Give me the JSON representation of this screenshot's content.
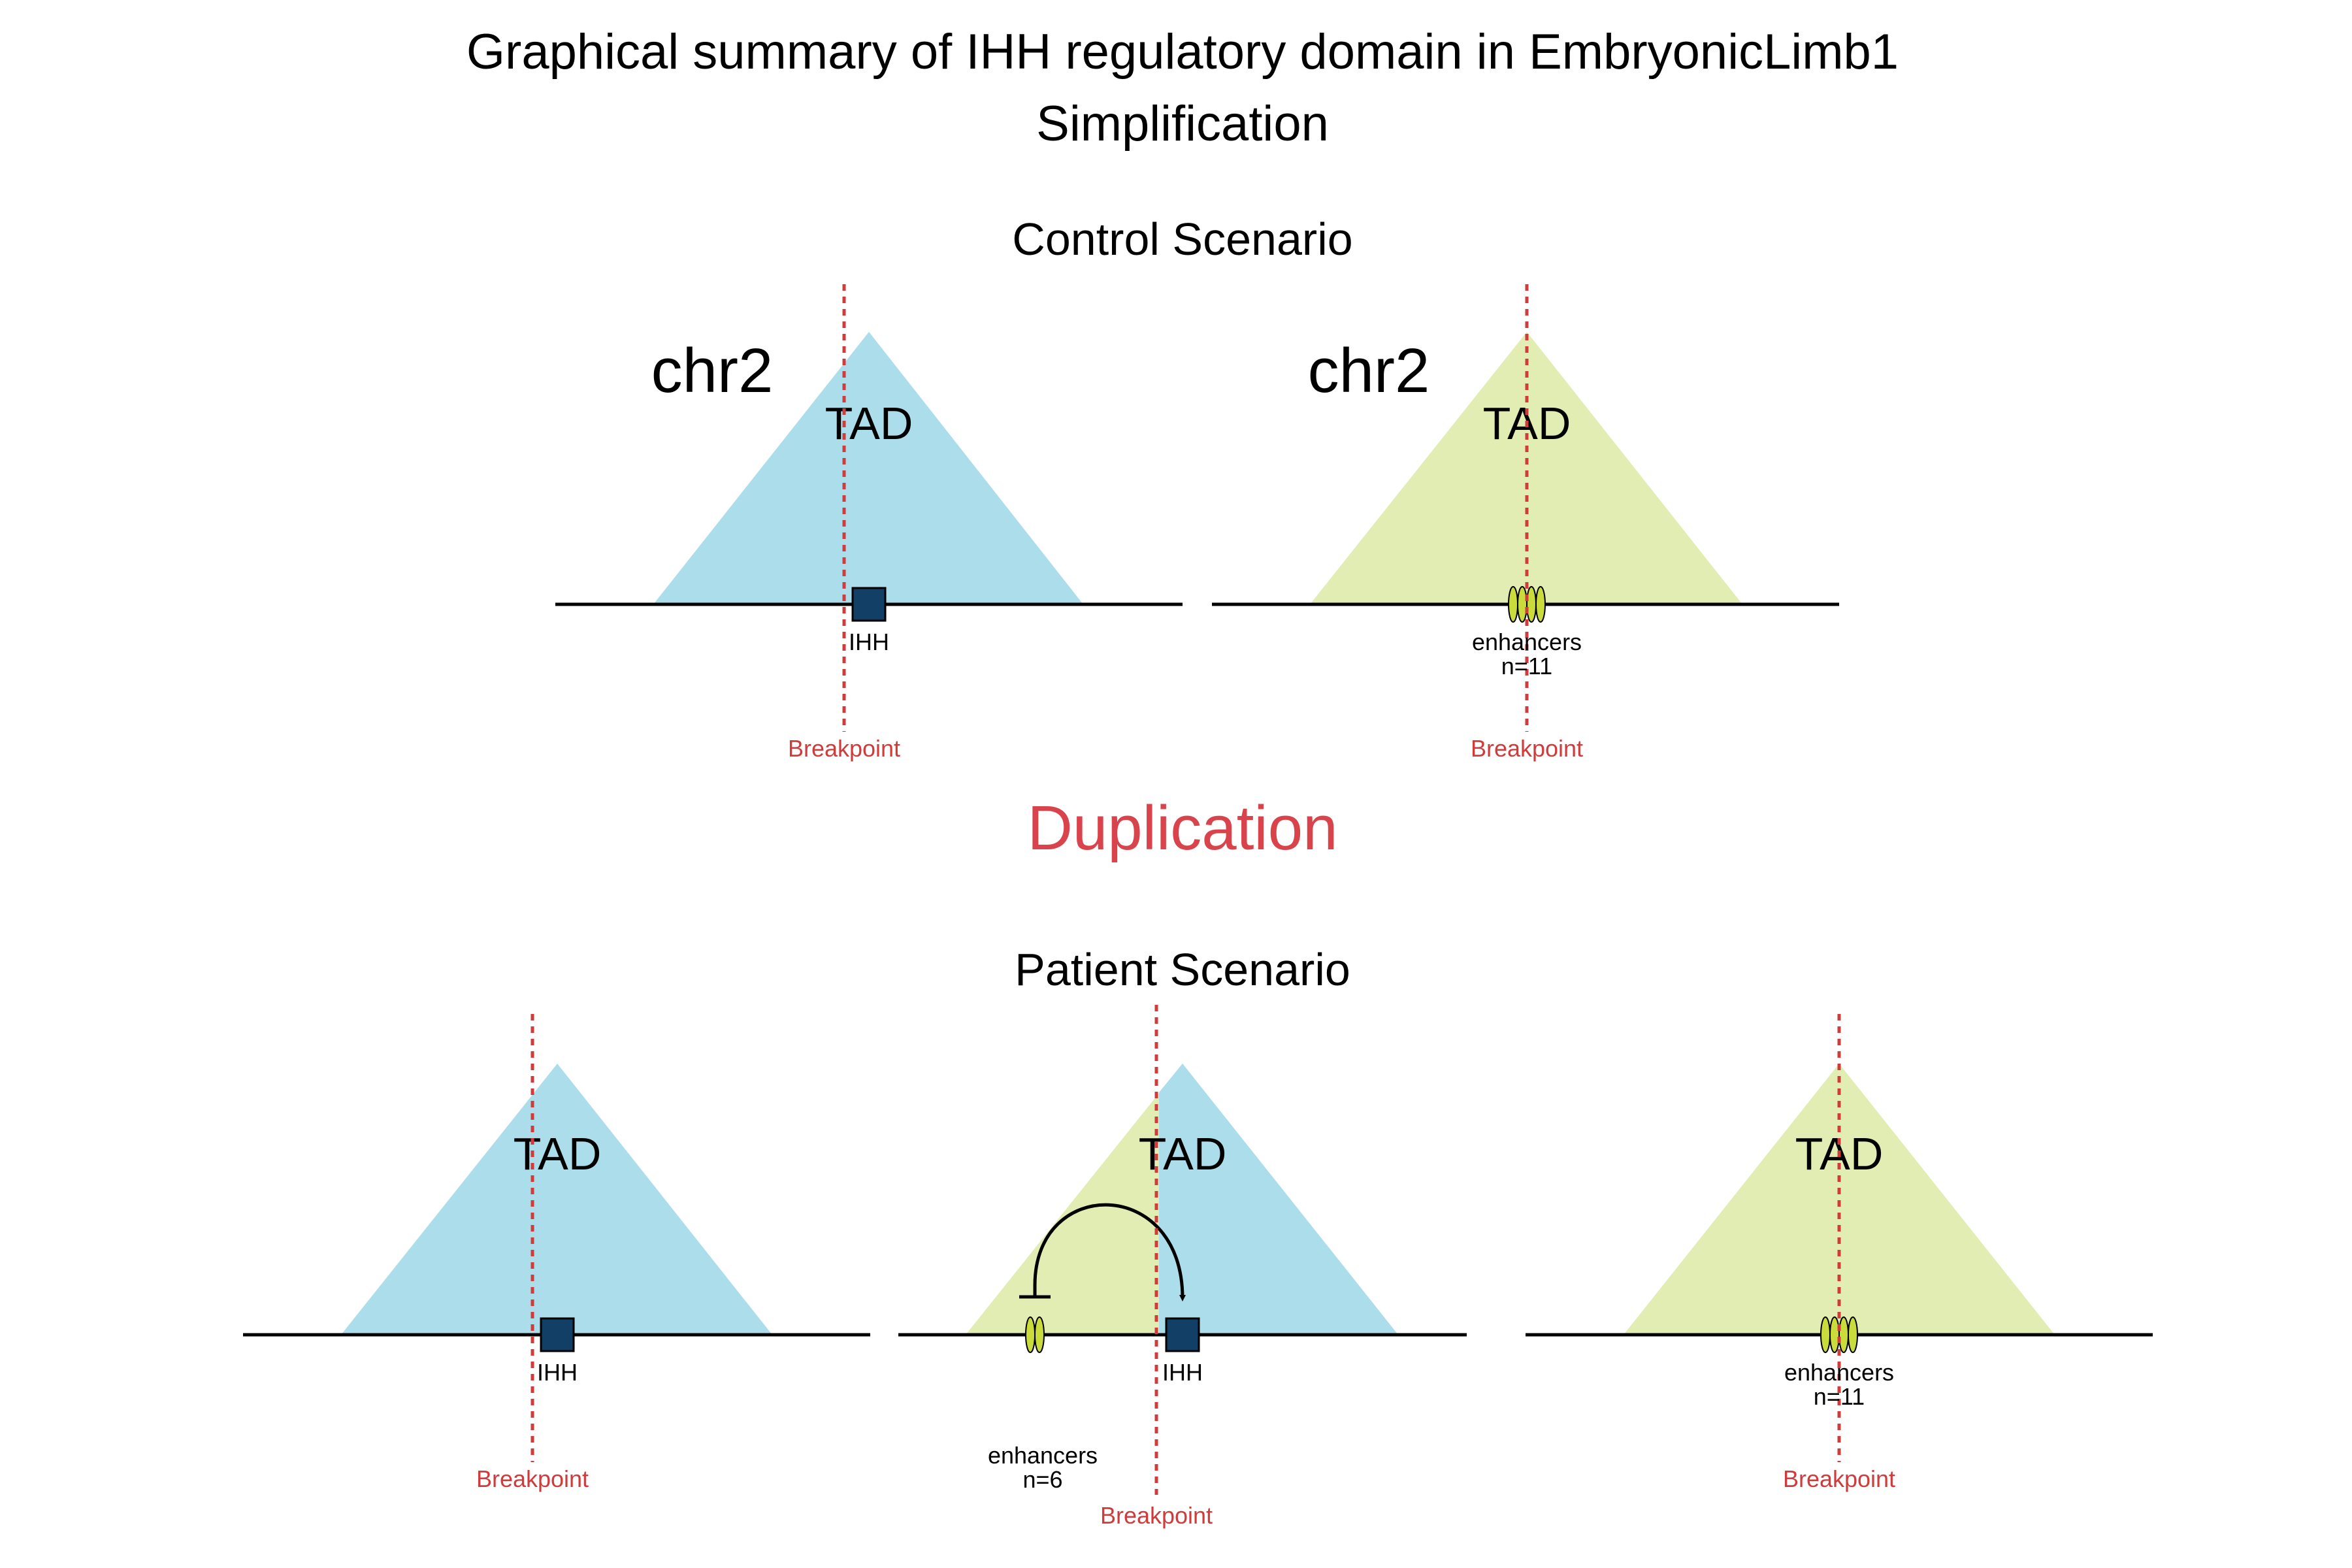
{
  "title": {
    "line1": "Graphical summary of IHH regulatory domain in EmbryonicLimb1",
    "line2": "Simplification"
  },
  "event_label": "Duplication",
  "colors": {
    "tad_blue": "#abdeea",
    "tad_green": "#e2edb3",
    "gene_fill": "#123f66",
    "enhancer_fill": "#c9dc3c",
    "breakpoint": "#d03b3b",
    "event": "#d9434b"
  },
  "control": {
    "heading": "Control Scenario",
    "left": {
      "chrom": "chr2",
      "tad_label": "TAD",
      "gene_label": "IHH",
      "breakpoint_label": "Breakpoint"
    },
    "right": {
      "chrom": "chr2",
      "tad_label": "TAD",
      "enhancer_label": "enhancers",
      "enhancer_count": "n=11",
      "breakpoint_label": "Breakpoint"
    }
  },
  "patient": {
    "heading": "Patient Scenario",
    "left": {
      "tad_label": "TAD",
      "gene_label": "IHH",
      "breakpoint_label": "Breakpoint"
    },
    "middle": {
      "tad_label": "TAD",
      "gene_label": "IHH",
      "enhancer_label": "enhancers",
      "enhancer_count": "n=6",
      "breakpoint_label": "Breakpoint"
    },
    "right": {
      "tad_label": "TAD",
      "enhancer_label": "enhancers",
      "enhancer_count": "n=11",
      "breakpoint_label": "Breakpoint"
    }
  }
}
